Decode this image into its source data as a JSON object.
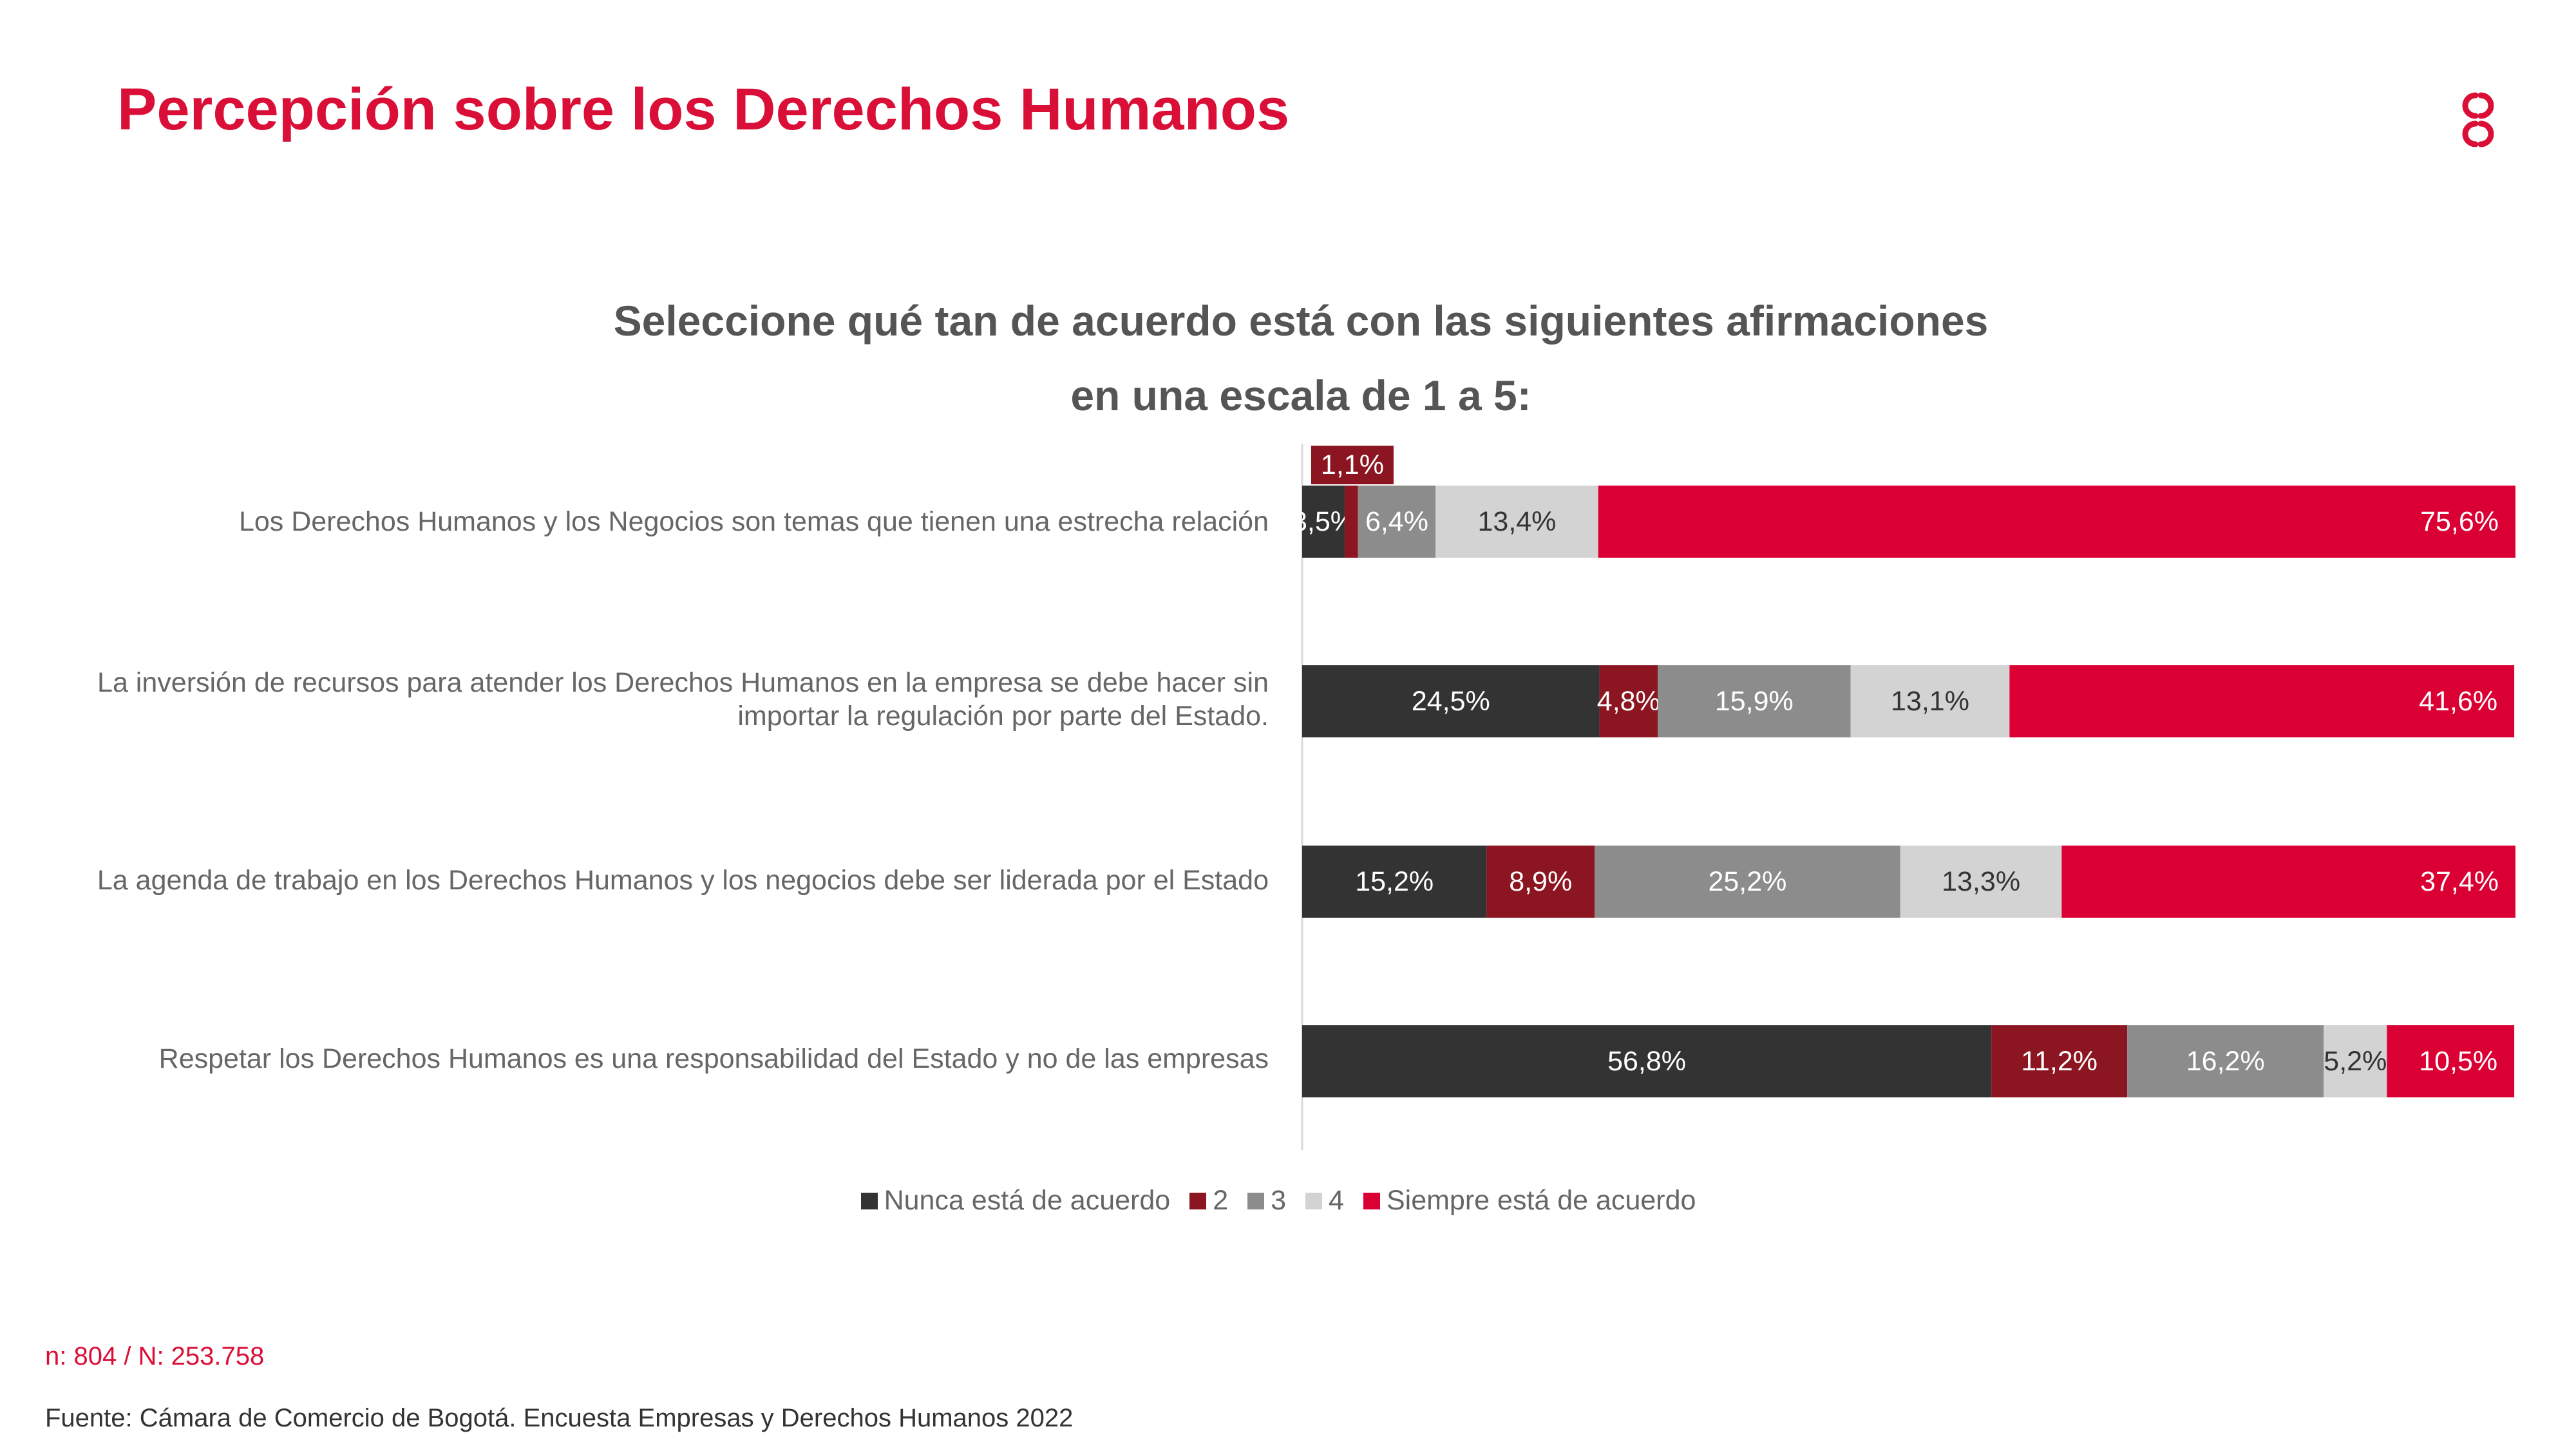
{
  "header": {
    "title": "Percepción sobre los Derechos Humanos",
    "logo_icon": "ccb-logo-icon"
  },
  "colors": {
    "brand": "#DA0F37",
    "series": [
      "#333333",
      "#8B1520",
      "#8C8C8C",
      "#D3D3D3",
      "#DA0033"
    ]
  },
  "chart_data": {
    "type": "bar",
    "orientation": "horizontal",
    "stacked": true,
    "title_line1": "Seleccione qué tan de acuerdo está con las siguientes afirmaciones",
    "title_line2": "en una escala de 1 a 5:",
    "xlim": [
      0,
      100
    ],
    "grid": false,
    "legend_position": "bottom",
    "categories": [
      "Los Derechos Humanos y los Negocios son temas que tienen una estrecha relación",
      "La inversión de recursos para atender los Derechos Humanos en la empresa se debe hacer sin importar la regulación por parte del Estado.",
      "La agenda de trabajo en los Derechos Humanos y los negocios debe ser liderada por el Estado",
      "Respetar los Derechos Humanos es una responsabilidad del Estado y no de las empresas"
    ],
    "series": [
      {
        "name": "Nunca está de acuerdo",
        "values": [
          3.5,
          24.5,
          15.2,
          56.8
        ],
        "labels": [
          "3,5%",
          "24,5%",
          "15,2%",
          "56,8%"
        ]
      },
      {
        "name": "2",
        "values": [
          1.1,
          4.8,
          8.9,
          11.2
        ],
        "labels": [
          "1,1%",
          "4,8%",
          "8,9%",
          "11,2%"
        ]
      },
      {
        "name": "3",
        "values": [
          6.4,
          15.9,
          25.2,
          16.2
        ],
        "labels": [
          "6,4%",
          "15,9%",
          "25,2%",
          "16,2%"
        ]
      },
      {
        "name": "4",
        "values": [
          13.4,
          13.1,
          13.3,
          5.2
        ],
        "labels": [
          "13,4%",
          "13,1%",
          "13,3%",
          "5,2%"
        ]
      },
      {
        "name": "Siempre está de acuerdo",
        "values": [
          75.6,
          41.6,
          37.4,
          10.5
        ],
        "labels": [
          "75,6%",
          "41,6%",
          "37,4%",
          "10,5%"
        ]
      }
    ]
  },
  "footer": {
    "sample": "n: 804  / N: 253.758",
    "source": "Fuente: Cámara de Comercio de Bogotá. Encuesta Empresas y Derechos Humanos 2022"
  }
}
